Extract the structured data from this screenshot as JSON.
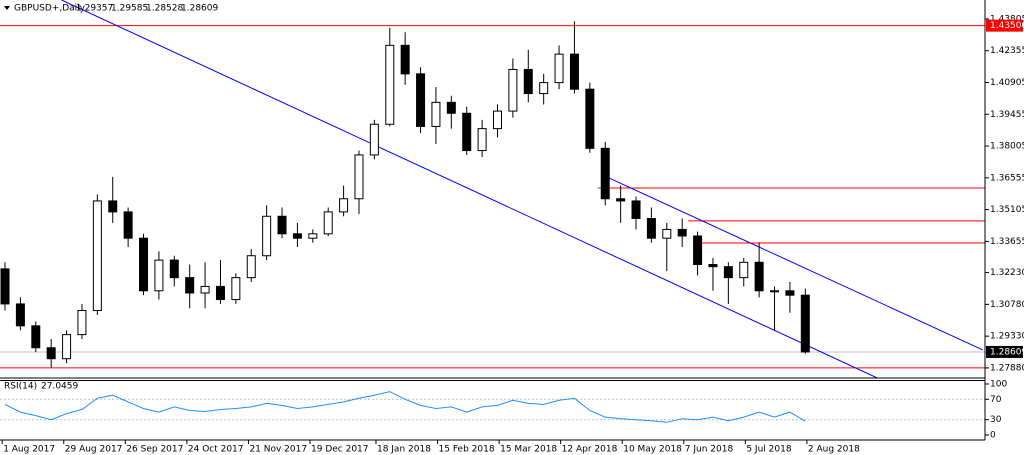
{
  "chart_data": [
    {
      "type": "candlestick",
      "header": {
        "symbol": "GBPUSD+,Daily",
        "ohlc": [
          1.29357,
          1.29585,
          1.28528,
          1.28609
        ]
      },
      "x": [
        "2017-07-31",
        "2017-08-07",
        "2017-08-14",
        "2017-08-21",
        "2017-08-28",
        "2017-09-04",
        "2017-09-11",
        "2017-09-18",
        "2017-09-25",
        "2017-10-02",
        "2017-10-09",
        "2017-10-16",
        "2017-10-23",
        "2017-10-30",
        "2017-11-06",
        "2017-11-13",
        "2017-11-20",
        "2017-11-27",
        "2017-12-04",
        "2017-12-11",
        "2017-12-18",
        "2017-12-25",
        "2018-01-01",
        "2018-01-08",
        "2018-01-15",
        "2018-01-22",
        "2018-01-29",
        "2018-02-05",
        "2018-02-12",
        "2018-02-19",
        "2018-02-26",
        "2018-03-05",
        "2018-03-12",
        "2018-03-19",
        "2018-03-26",
        "2018-04-02",
        "2018-04-09",
        "2018-04-16",
        "2018-04-23",
        "2018-04-30",
        "2018-05-07",
        "2018-05-14",
        "2018-05-21",
        "2018-05-28",
        "2018-06-04",
        "2018-06-11",
        "2018-06-18",
        "2018-06-25",
        "2018-07-02",
        "2018-07-09",
        "2018-07-16",
        "2018-07-23",
        "2018-07-30"
      ],
      "open": [
        1.324,
        1.308,
        1.298,
        1.288,
        1.283,
        1.294,
        1.305,
        1.355,
        1.35,
        1.338,
        1.314,
        1.328,
        1.32,
        1.313,
        1.316,
        1.31,
        1.32,
        1.33,
        1.348,
        1.34,
        1.338,
        1.34,
        1.35,
        1.356,
        1.376,
        1.39,
        1.426,
        1.413,
        1.389,
        1.4,
        1.395,
        1.378,
        1.388,
        1.396,
        1.415,
        1.404,
        1.409,
        1.422,
        1.406,
        1.379,
        1.356,
        1.355,
        1.347,
        1.338,
        1.342,
        1.339,
        1.326,
        1.325,
        1.32,
        1.327,
        1.314,
        1.314,
        1.312
      ],
      "high": [
        1.327,
        1.311,
        1.3,
        1.292,
        1.296,
        1.308,
        1.358,
        1.366,
        1.352,
        1.34,
        1.332,
        1.33,
        1.326,
        1.327,
        1.328,
        1.322,
        1.333,
        1.353,
        1.352,
        1.345,
        1.342,
        1.352,
        1.362,
        1.378,
        1.392,
        1.434,
        1.432,
        1.416,
        1.407,
        1.403,
        1.398,
        1.392,
        1.399,
        1.42,
        1.424,
        1.413,
        1.426,
        1.437,
        1.409,
        1.382,
        1.362,
        1.357,
        1.352,
        1.345,
        1.347,
        1.341,
        1.329,
        1.327,
        1.329,
        1.336,
        1.316,
        1.318,
        1.315
      ],
      "low": [
        1.305,
        1.296,
        1.286,
        1.279,
        1.281,
        1.292,
        1.303,
        1.345,
        1.334,
        1.312,
        1.31,
        1.316,
        1.306,
        1.306,
        1.308,
        1.308,
        1.318,
        1.328,
        1.338,
        1.334,
        1.336,
        1.339,
        1.348,
        1.349,
        1.374,
        1.389,
        1.408,
        1.386,
        1.381,
        1.388,
        1.376,
        1.375,
        1.384,
        1.393,
        1.4,
        1.399,
        1.406,
        1.404,
        1.377,
        1.353,
        1.345,
        1.342,
        1.336,
        1.323,
        1.334,
        1.321,
        1.314,
        1.308,
        1.316,
        1.311,
        1.296,
        1.304,
        1.2853
      ],
      "close": [
        1.308,
        1.298,
        1.288,
        1.283,
        1.294,
        1.305,
        1.355,
        1.35,
        1.338,
        1.314,
        1.328,
        1.32,
        1.313,
        1.316,
        1.31,
        1.32,
        1.33,
        1.348,
        1.34,
        1.338,
        1.34,
        1.35,
        1.356,
        1.376,
        1.39,
        1.426,
        1.413,
        1.389,
        1.4,
        1.395,
        1.378,
        1.388,
        1.396,
        1.415,
        1.404,
        1.409,
        1.422,
        1.406,
        1.379,
        1.356,
        1.355,
        1.347,
        1.338,
        1.342,
        1.339,
        1.326,
        1.325,
        1.32,
        1.327,
        1.314,
        1.314,
        1.312,
        1.2861
      ],
      "xlim": [
        "2017-07-31",
        "2018-10-22"
      ],
      "xticks": [
        {
          "value": "2017-08-01",
          "label": "1 Aug 2017"
        },
        {
          "value": "2017-08-29",
          "label": "29 Aug 2017"
        },
        {
          "value": "2017-09-26",
          "label": "26 Sep 2017"
        },
        {
          "value": "2017-10-24",
          "label": "24 Oct 2017"
        },
        {
          "value": "2017-11-21",
          "label": "21 Nov 2017"
        },
        {
          "value": "2017-12-19",
          "label": "19 Dec 2017"
        },
        {
          "value": "2018-01-18",
          "label": "18 Jan 2018"
        },
        {
          "value": "2018-02-15",
          "label": "15 Feb 2018"
        },
        {
          "value": "2018-03-15",
          "label": "15 Mar 2018"
        },
        {
          "value": "2018-04-12",
          "label": "12 Apr 2018"
        },
        {
          "value": "2018-05-10",
          "label": "10 May 2018"
        },
        {
          "value": "2018-06-07",
          "label": "7 Jun 2018"
        },
        {
          "value": "2018-07-05",
          "label": "5 Jul 2018"
        },
        {
          "value": "2018-08-02",
          "label": "2 Aug 2018"
        }
      ],
      "ylim": [
        1.2742,
        1.4467
      ],
      "yticks": [
        1.43805,
        1.42355,
        1.40905,
        1.39455,
        1.38005,
        1.36555,
        1.35105,
        1.33655,
        {
          "value": 1.3223,
          "label": "1.32230"
        },
        {
          "value": 1.3078,
          "label": "1.30780"
        },
        {
          "value": 1.2933,
          "label": "1.29330"
        },
        {
          "value": 1.2788,
          "label": "1.27880"
        }
      ],
      "hlines": [
        {
          "value": 1.435,
          "label": "1.43500",
          "from": "2017-07-31",
          "color": "#ff0000"
        },
        {
          "value": 1.3609,
          "from": "2018-04-29",
          "color": "#ff0000"
        },
        {
          "value": 1.3459,
          "from": "2018-06-09",
          "color": "#ff0000"
        },
        {
          "value": 1.3358,
          "from": "2018-06-14",
          "color": "#ff0000"
        },
        {
          "value": 1.2788,
          "from": "2017-07-31",
          "color": "#ff0000"
        }
      ],
      "trendlines": [
        {
          "x": [
            "2017-08-28",
            "2018-09-03"
          ],
          "y": [
            1.4467,
            1.2742
          ],
          "color": "#0000ff"
        },
        {
          "x": [
            "2018-05-02",
            "2018-10-21"
          ],
          "y": [
            1.3664,
            1.287
          ],
          "color": "#0000ff"
        }
      ]
    },
    {
      "type": "line",
      "name": "RSI(14)",
      "color": "#1e90ff",
      "x": [
        "2017-07-31",
        "2017-08-07",
        "2017-08-14",
        "2017-08-21",
        "2017-08-28",
        "2017-09-04",
        "2017-09-11",
        "2017-09-18",
        "2017-09-25",
        "2017-10-02",
        "2017-10-09",
        "2017-10-16",
        "2017-10-23",
        "2017-10-30",
        "2017-11-06",
        "2017-11-13",
        "2017-11-20",
        "2017-11-27",
        "2017-12-04",
        "2017-12-11",
        "2017-12-18",
        "2017-12-25",
        "2018-01-01",
        "2018-01-08",
        "2018-01-15",
        "2018-01-22",
        "2018-01-29",
        "2018-02-05",
        "2018-02-12",
        "2018-02-19",
        "2018-02-26",
        "2018-03-05",
        "2018-03-12",
        "2018-03-19",
        "2018-03-26",
        "2018-04-02",
        "2018-04-09",
        "2018-04-16",
        "2018-04-23",
        "2018-04-30",
        "2018-05-07",
        "2018-05-14",
        "2018-05-21",
        "2018-05-28",
        "2018-06-04",
        "2018-06-11",
        "2018-06-18",
        "2018-06-25",
        "2018-07-02",
        "2018-07-09",
        "2018-07-16",
        "2018-07-23",
        "2018-07-30"
      ],
      "values": [
        60,
        45,
        38,
        30,
        42,
        50,
        72,
        78,
        65,
        52,
        45,
        55,
        48,
        46,
        50,
        52,
        55,
        62,
        58,
        52,
        55,
        60,
        65,
        72,
        78,
        85,
        70,
        58,
        52,
        55,
        45,
        55,
        58,
        68,
        62,
        60,
        68,
        72,
        48,
        35,
        32,
        30,
        28,
        25,
        32,
        30,
        35,
        28,
        35,
        45,
        35,
        45,
        27.0459
      ],
      "xlim": [
        "2017-07-31",
        "2018-10-22"
      ],
      "ylim": [
        0,
        100
      ],
      "yticks": [
        100,
        70,
        30,
        0
      ],
      "levels": [
        70,
        30
      ]
    }
  ]
}
